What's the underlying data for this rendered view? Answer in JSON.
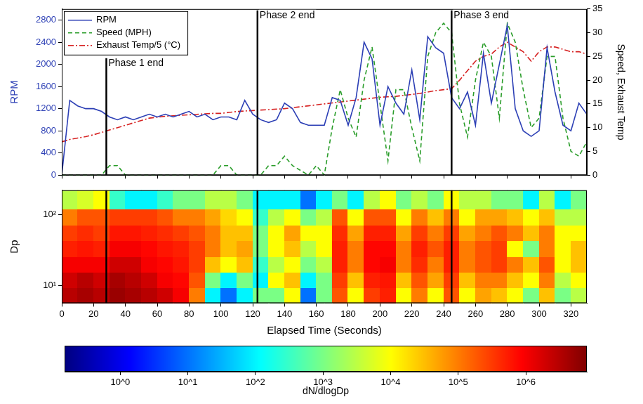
{
  "chart_data": [
    {
      "type": "line",
      "y_label": "RPM",
      "y2_label": "Speed, Exhaust Temp",
      "x": [
        0,
        5,
        10,
        15,
        20,
        25,
        30,
        35,
        40,
        45,
        50,
        55,
        60,
        65,
        70,
        75,
        80,
        85,
        90,
        95,
        100,
        105,
        110,
        115,
        120,
        125,
        130,
        135,
        140,
        145,
        150,
        155,
        160,
        165,
        170,
        175,
        180,
        185,
        190,
        195,
        200,
        205,
        210,
        215,
        220,
        225,
        230,
        235,
        240,
        245,
        250,
        255,
        260,
        265,
        270,
        275,
        280,
        285,
        290,
        295,
        300,
        305,
        310,
        315,
        320,
        325,
        330
      ],
      "series": [
        {
          "name": "RPM",
          "color": "#2c3fb5",
          "line_style": "solid",
          "axis": "y",
          "values": [
            0,
            1350,
            1250,
            1200,
            1200,
            1150,
            1050,
            1000,
            1050,
            1000,
            1050,
            1100,
            1050,
            1100,
            1050,
            1100,
            1150,
            1050,
            1100,
            1000,
            1050,
            1050,
            1000,
            1350,
            1100,
            1000,
            950,
            1000,
            1300,
            1200,
            950,
            900,
            900,
            900,
            1400,
            1350,
            900,
            1400,
            2400,
            2100,
            900,
            1600,
            1300,
            1100,
            1900,
            1000,
            2500,
            2300,
            2200,
            1400,
            1200,
            1500,
            900,
            2200,
            1300,
            2000,
            2700,
            1200,
            800,
            700,
            800,
            2300,
            1500,
            900,
            800,
            1300,
            1100
          ]
        },
        {
          "name": "Speed (MPH)",
          "color": "#2a9d2a",
          "line_style": "dashed",
          "axis": "y2",
          "values": [
            0,
            0,
            0,
            0,
            0,
            0,
            2,
            2,
            0,
            0,
            0,
            0,
            0,
            0,
            0,
            0,
            0,
            0,
            0,
            0,
            2,
            2,
            0,
            0,
            0,
            0,
            2,
            2,
            4,
            2,
            1,
            0,
            2,
            0,
            10,
            18,
            12,
            8,
            20,
            27,
            15,
            3,
            18,
            18,
            10,
            3,
            25,
            30,
            32,
            30,
            15,
            8,
            20,
            28,
            25,
            12,
            32,
            28,
            18,
            10,
            12,
            25,
            25,
            12,
            5,
            4,
            7
          ]
        },
        {
          "name": "Exhaust Temp/5 (°C)",
          "color": "#d62020",
          "line_style": "dashdot",
          "axis": "y2",
          "values": [
            7,
            7.5,
            7.8,
            8.1,
            8.5,
            9,
            9.5,
            10,
            10.5,
            11,
            11.5,
            12,
            12.2,
            12.4,
            12.5,
            12.6,
            12.7,
            12.8,
            12.9,
            13,
            13,
            13.2,
            13.4,
            13.5,
            13.6,
            13.7,
            13.8,
            13.9,
            14,
            14.2,
            14.4,
            14.6,
            14.8,
            15,
            15.2,
            15.4,
            15.6,
            15.8,
            16,
            16.2,
            16.4,
            16.5,
            16.6,
            16.8,
            17,
            17.2,
            17.5,
            17.8,
            18,
            18.2,
            20,
            22,
            24,
            25,
            25.5,
            27,
            28,
            27,
            26,
            24,
            26,
            27,
            27,
            26.5,
            26,
            26,
            25.5
          ]
        }
      ],
      "xlim": [
        0,
        330
      ],
      "xticks": [
        0,
        20,
        40,
        60,
        80,
        100,
        120,
        140,
        160,
        180,
        200,
        220,
        240,
        260,
        280,
        300,
        320
      ],
      "ylim": [
        0,
        3000
      ],
      "yticks": [
        0,
        400,
        800,
        1200,
        1600,
        2000,
        2400,
        2800
      ],
      "y2lim": [
        0,
        35
      ],
      "y2ticks": [
        0,
        5,
        10,
        15,
        20,
        25,
        30,
        35
      ],
      "legend": "upper left",
      "grid": false,
      "tick_labels": "y",
      "annotations": [
        {
          "x": 28,
          "label": "Phase 1 end"
        },
        {
          "x": 123,
          "label": "Phase 2 end"
        },
        {
          "x": 245,
          "label": "Phase 3 end"
        }
      ]
    },
    {
      "type": "heatmap",
      "x_label": "Elapsed Time (Seconds)",
      "y_label": "Dp",
      "x_edges": [
        0,
        10,
        20,
        30,
        40,
        50,
        60,
        70,
        80,
        90,
        100,
        110,
        120,
        130,
        140,
        150,
        160,
        170,
        180,
        190,
        200,
        210,
        220,
        230,
        240,
        250,
        260,
        270,
        280,
        290,
        300,
        310,
        320,
        330
      ],
      "y_edges": [
        5.6,
        9.4,
        15.6,
        26,
        43,
        72,
        120,
        220
      ],
      "cells": [
        [
          3000000.0,
          4000000.0,
          3000000.0,
          5000000.0,
          4000000.0,
          3000000.0,
          2000000.0,
          1000000.0,
          100000.0,
          100,
          10,
          100,
          1000,
          1000,
          10000.0,
          10,
          1000,
          200000.0,
          10000.0,
          300000.0,
          500000.0,
          10000.0,
          100000.0,
          10000.0,
          200000.0,
          10000.0,
          50000.0,
          30000.0,
          10000.0,
          1000,
          30000.0,
          1000,
          3000
        ],
        [
          2000000.0,
          3000000.0,
          2000000.0,
          4000000.0,
          3000000.0,
          2000000.0,
          1000000.0,
          800000.0,
          200000.0,
          1000,
          100,
          1000,
          100,
          10000.0,
          30000.0,
          100,
          1000,
          300000.0,
          30000.0,
          500000.0,
          600000.0,
          30000.0,
          200000.0,
          50000.0,
          300000.0,
          30000.0,
          100000.0,
          100000.0,
          30000.0,
          10000.0,
          100000.0,
          3000,
          10000.0
        ],
        [
          1000000.0,
          1000000.0,
          1000000.0,
          2000000.0,
          2000000.0,
          1000000.0,
          800000.0,
          600000.0,
          300000.0,
          30000.0,
          10000.0,
          30000.0,
          300,
          3000,
          10000.0,
          1000,
          3000,
          500000.0,
          100000.0,
          800000.0,
          1000000.0,
          100000.0,
          400000.0,
          100000.0,
          500000.0,
          100000.0,
          200000.0,
          300000.0,
          100000.0,
          30000.0,
          200000.0,
          10000.0,
          30000.0
        ],
        [
          500000.0,
          600000.0,
          500000.0,
          1000000.0,
          1000000.0,
          800000.0,
          600000.0,
          500000.0,
          300000.0,
          100000.0,
          30000.0,
          50000.0,
          1000,
          10000.0,
          30000.0,
          3000,
          10000.0,
          500000.0,
          100000.0,
          800000.0,
          800000.0,
          100000.0,
          500000.0,
          200000.0,
          500000.0,
          100000.0,
          200000.0,
          300000.0,
          10000.0,
          1000,
          100000.0,
          10000.0,
          30000.0
        ],
        [
          300000.0,
          400000.0,
          300000.0,
          600000.0,
          600000.0,
          500000.0,
          400000.0,
          300000.0,
          200000.0,
          100000.0,
          30000.0,
          30000.0,
          1000,
          10000.0,
          50000.0,
          10000.0,
          10000.0,
          400000.0,
          50000.0,
          500000.0,
          500000.0,
          50000.0,
          300000.0,
          100000.0,
          300000.0,
          50000.0,
          100000.0,
          200000.0,
          100000.0,
          30000.0,
          100000.0,
          10000.0,
          10000.0
        ],
        [
          100000.0,
          200000.0,
          200000.0,
          300000.0,
          300000.0,
          300000.0,
          200000.0,
          100000.0,
          100000.0,
          50000.0,
          20000.0,
          10000.0,
          300,
          3000,
          10000.0,
          1000,
          3000,
          200000.0,
          10000.0,
          200000.0,
          200000.0,
          10000.0,
          100000.0,
          30000.0,
          100000.0,
          10000.0,
          50000.0,
          50000.0,
          30000.0,
          10000.0,
          30000.0,
          3000,
          3000
        ],
        [
          3000,
          5000,
          10000.0,
          300,
          100,
          100,
          300,
          1000,
          1000,
          3000,
          3000,
          1000,
          100,
          100,
          100,
          10,
          100,
          1000,
          100,
          3000,
          10000.0,
          1000,
          3000,
          1000,
          10000.0,
          3000,
          3000,
          1000,
          1000,
          100,
          3000,
          100,
          1000
        ]
      ],
      "xlim": [
        0,
        330
      ],
      "xticks": [
        0,
        20,
        40,
        60,
        80,
        100,
        120,
        140,
        160,
        180,
        200,
        220,
        240,
        260,
        280,
        300,
        320
      ],
      "ylim": [
        5.6,
        220
      ],
      "yticks": [
        {
          "value": 10,
          "label": "10¹"
        },
        {
          "value": 100,
          "label": "10²"
        }
      ],
      "log": "y",
      "grid": false,
      "colorbar": {
        "label": "dN/dlogDp",
        "log": true,
        "range": [
          0.15,
          8000000
        ],
        "ticks": [
          {
            "value": 1,
            "label": "10^0"
          },
          {
            "value": 10,
            "label": "10^1"
          },
          {
            "value": 100,
            "label": "10^2"
          },
          {
            "value": 1000,
            "label": "10^3"
          },
          {
            "value": 10000,
            "label": "10^4"
          },
          {
            "value": 100000,
            "label": "10^5"
          },
          {
            "value": 1000000,
            "label": "10^6"
          }
        ]
      }
    }
  ]
}
